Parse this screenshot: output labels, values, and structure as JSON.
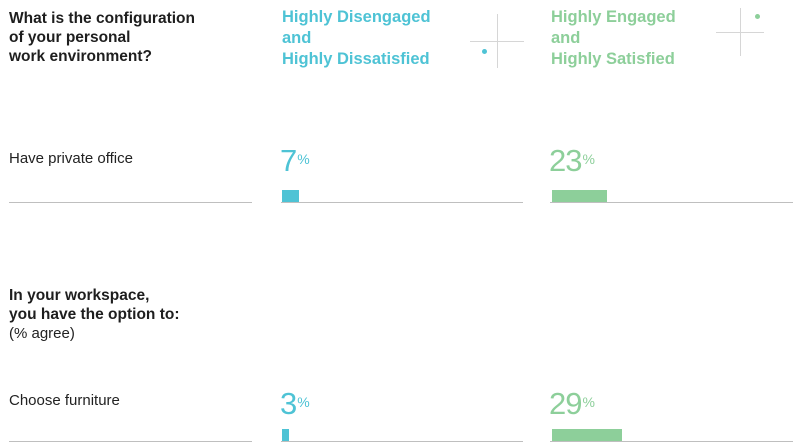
{
  "colors": {
    "disengaged": "#4ec3d5",
    "engaged": "#8dcf9a"
  },
  "section1": {
    "question": "What is the configuration\nof your personal\nwork environment?"
  },
  "section2": {
    "question": "In your workspace,\nyou have the option to:",
    "subtitle": "(% agree)"
  },
  "columns": {
    "disengaged": "Highly Disengaged\nand\nHighly Dissatisfied",
    "engaged": "Highly Engaged\nand\nHighly Satisfied"
  },
  "chart_data": {
    "type": "bar",
    "categories": [
      "Have private office",
      "Choose furniture"
    ],
    "series": [
      {
        "name": "Highly Disengaged and Highly Dissatisfied",
        "values": [
          7,
          3
        ]
      },
      {
        "name": "Highly Engaged and Highly Satisfied",
        "values": [
          23,
          29
        ]
      }
    ],
    "unit": "%"
  }
}
